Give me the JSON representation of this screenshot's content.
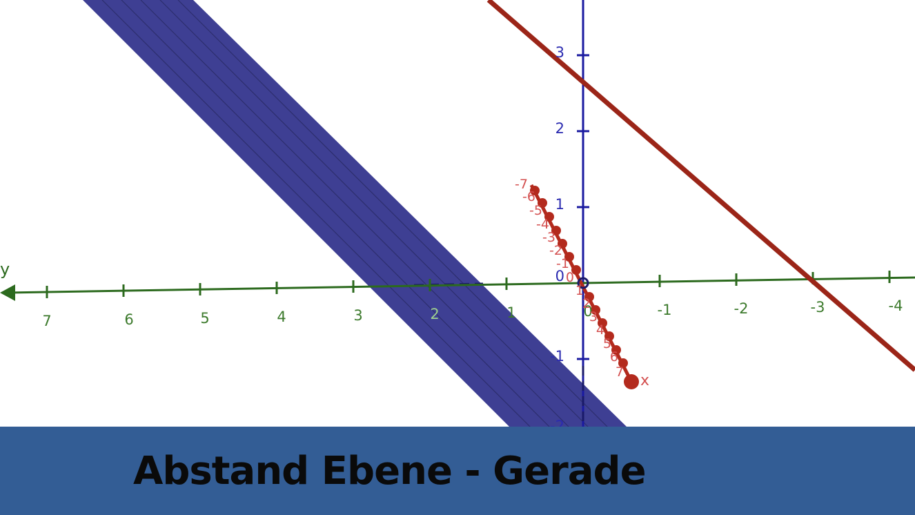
{
  "title": "Abstand Ebene - Gerade",
  "colors": {
    "plane_fill": "#3e3f93",
    "line_red": "#9b2518",
    "axis_y": "#2c6a1e",
    "axis_z": "#1a1aa0",
    "axis_x": "#b32a1d",
    "banner": "#335d95"
  },
  "axes": {
    "y_axis_name": "y",
    "x_axis_name": "x",
    "y_ticks": [
      "7",
      "6",
      "5",
      "4",
      "3",
      "2",
      "1",
      "0",
      "-1",
      "-2",
      "-3",
      "-4"
    ],
    "z_ticks": [
      "3",
      "2",
      "1",
      "0",
      "-1",
      "-2"
    ],
    "x_ticks": [
      "-7",
      "-6",
      "-5",
      "-4",
      "-3",
      "-2",
      "-1",
      "0",
      "1",
      "2",
      "3",
      "4",
      "5",
      "6",
      "7"
    ]
  },
  "objects": {
    "plane": "plane-icon",
    "line": "line-icon"
  }
}
